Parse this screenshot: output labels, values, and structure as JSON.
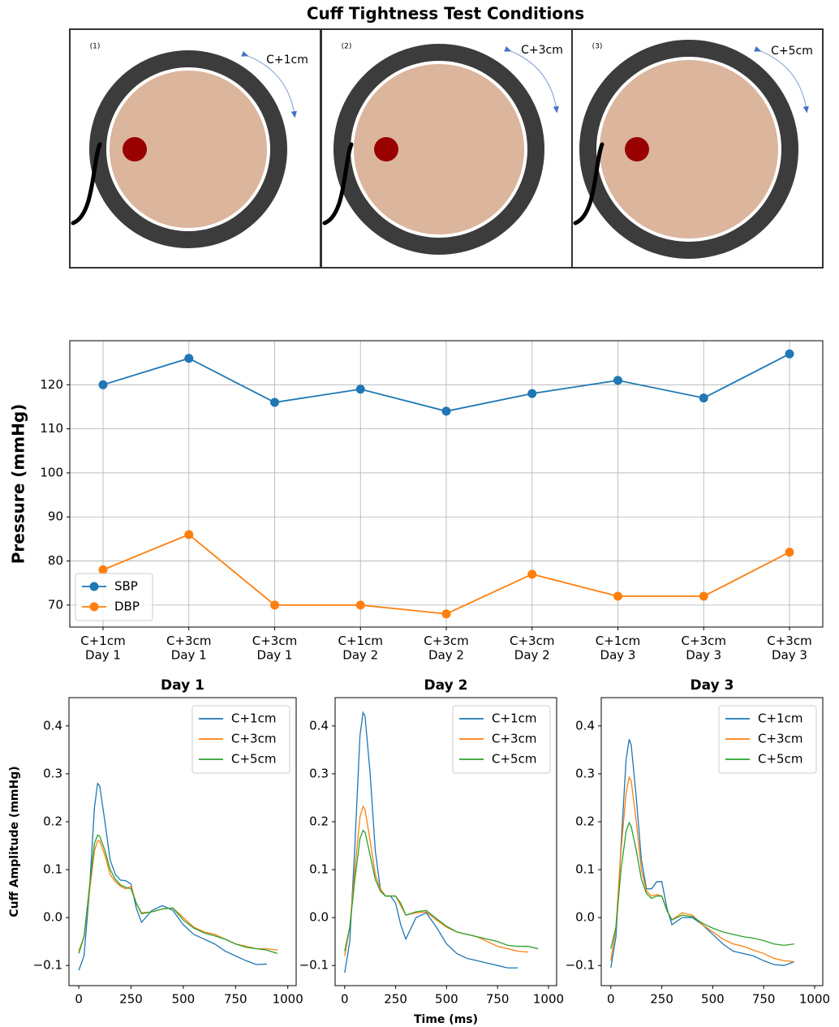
{
  "diagram": {
    "title": "Cuff Tightness Test Conditions",
    "panels": [
      {
        "number": "(1)",
        "label": "C+1cm"
      },
      {
        "number": "(2)",
        "label": "C+3cm"
      },
      {
        "number": "(3)",
        "label": "C+5cm"
      }
    ]
  },
  "chart_data": [
    {
      "type": "line",
      "y_label": "Pressure (mmHg)",
      "categories": [
        "C+1cm\nDay 1",
        "C+3cm\nDay 1",
        "C+3cm\nDay 1",
        "C+1cm\nDay 2",
        "C+3cm\nDay 2",
        "C+3cm\nDay 2",
        "C+1cm\nDay 3",
        "C+3cm\nDay 3",
        "C+3cm\nDay 3"
      ],
      "series": [
        {
          "name": "SBP",
          "color": "#1f77b4",
          "values": [
            120,
            126,
            116,
            119,
            114,
            118,
            121,
            117,
            127
          ]
        },
        {
          "name": "DBP",
          "color": "#ff7f0e",
          "values": [
            78,
            86,
            70,
            70,
            68,
            77,
            72,
            72,
            82
          ]
        }
      ],
      "ylim": [
        65,
        130
      ],
      "yticks": [
        70,
        80,
        90,
        100,
        110,
        120
      ],
      "grid": true,
      "markers": true,
      "legend": "lower left"
    },
    {
      "type": "line",
      "title": "Day 1",
      "y_label": "Cuff Amplitude (mmHg)",
      "x": [
        0,
        25,
        50,
        75,
        90,
        100,
        125,
        150,
        175,
        200,
        225,
        250,
        275,
        300,
        350,
        400,
        450,
        500,
        550,
        600,
        650,
        700,
        750,
        800,
        850,
        900,
        950
      ],
      "series": [
        {
          "name": "C+1cm",
          "color": "#1f77b4",
          "values": [
            -0.11,
            -0.08,
            0.05,
            0.23,
            0.28,
            0.275,
            0.2,
            0.12,
            0.09,
            0.078,
            0.077,
            0.07,
            0.02,
            -0.01,
            0.015,
            0.025,
            0.015,
            -0.015,
            -0.035,
            -0.045,
            -0.055,
            -0.07,
            -0.08,
            -0.09,
            -0.098,
            -0.097,
            null
          ]
        },
        {
          "name": "C+3cm",
          "color": "#ff7f0e",
          "values": [
            -0.07,
            -0.04,
            0.05,
            0.14,
            0.16,
            0.16,
            0.13,
            0.09,
            0.075,
            0.065,
            0.06,
            0.065,
            0.03,
            0.01,
            0.012,
            0.018,
            0.02,
            0.0,
            -0.02,
            -0.03,
            -0.035,
            -0.045,
            -0.055,
            -0.06,
            -0.065,
            -0.065,
            -0.068
          ]
        },
        {
          "name": "C+5cm",
          "color": "#2ca02c",
          "values": [
            -0.075,
            -0.04,
            0.06,
            0.155,
            0.172,
            0.17,
            0.14,
            0.1,
            0.08,
            0.068,
            0.063,
            0.06,
            0.03,
            0.008,
            0.012,
            0.018,
            0.02,
            -0.005,
            -0.022,
            -0.032,
            -0.038,
            -0.045,
            -0.055,
            -0.062,
            -0.065,
            -0.068,
            -0.075
          ]
        }
      ],
      "xlim": [
        -47,
        1040
      ],
      "xticks": [
        0,
        250,
        500,
        750,
        1000
      ],
      "ylim": [
        -0.142,
        0.459
      ],
      "yticks": [
        {
          "value": -0.1,
          "label": "−0.1"
        },
        {
          "value": 0,
          "label": "0.0"
        },
        0.1,
        0.2,
        0.3,
        0.4
      ],
      "legend": "upper right"
    },
    {
      "type": "line",
      "title": "Day 2",
      "x_label": "Time (ms)",
      "x": [
        0,
        25,
        50,
        75,
        90,
        100,
        125,
        150,
        175,
        200,
        225,
        250,
        275,
        300,
        350,
        400,
        450,
        500,
        550,
        600,
        650,
        700,
        750,
        800,
        850,
        900,
        950
      ],
      "series": [
        {
          "name": "C+1cm",
          "color": "#1f77b4",
          "values": [
            -0.115,
            -0.05,
            0.15,
            0.38,
            0.428,
            0.42,
            0.3,
            0.14,
            0.06,
            0.045,
            0.045,
            0.03,
            -0.015,
            -0.045,
            0.0,
            0.01,
            -0.02,
            -0.055,
            -0.075,
            -0.085,
            -0.09,
            -0.095,
            -0.1,
            -0.105,
            -0.105,
            null,
            null
          ]
        },
        {
          "name": "C+3cm",
          "color": "#ff7f0e",
          "values": [
            -0.08,
            -0.02,
            0.1,
            0.21,
            0.232,
            0.225,
            0.16,
            0.09,
            0.06,
            0.045,
            0.045,
            0.045,
            0.025,
            0.005,
            0.01,
            0.012,
            -0.005,
            -0.02,
            -0.03,
            -0.035,
            -0.04,
            -0.05,
            -0.06,
            -0.065,
            -0.07,
            -0.072,
            null
          ]
        },
        {
          "name": "C+5cm",
          "color": "#2ca02c",
          "values": [
            -0.07,
            -0.02,
            0.08,
            0.165,
            0.182,
            0.178,
            0.13,
            0.08,
            0.055,
            0.045,
            0.045,
            0.045,
            0.03,
            0.005,
            0.012,
            0.015,
            -0.002,
            -0.018,
            -0.03,
            -0.035,
            -0.04,
            -0.045,
            -0.05,
            -0.058,
            -0.06,
            -0.06,
            -0.065
          ]
        }
      ],
      "xlim": [
        -47,
        1040
      ],
      "xticks": [
        0,
        250,
        500,
        750,
        1000
      ],
      "ylim": [
        -0.142,
        0.459
      ],
      "yticks": [
        {
          "value": -0.1,
          "label": "−0.1"
        },
        {
          "value": 0,
          "label": "0.0"
        },
        0.1,
        0.2,
        0.3,
        0.4
      ],
      "legend": "upper right"
    },
    {
      "type": "line",
      "title": "Day 3",
      "x": [
        0,
        25,
        50,
        75,
        90,
        100,
        125,
        150,
        175,
        200,
        225,
        250,
        275,
        300,
        350,
        400,
        450,
        500,
        550,
        600,
        650,
        700,
        750,
        800,
        850,
        900,
        950
      ],
      "series": [
        {
          "name": "C+1cm",
          "color": "#1f77b4",
          "values": [
            -0.105,
            -0.04,
            0.15,
            0.33,
            0.372,
            0.36,
            0.25,
            0.12,
            0.06,
            0.06,
            0.075,
            0.075,
            0.02,
            -0.015,
            0.0,
            0.0,
            -0.015,
            -0.035,
            -0.055,
            -0.07,
            -0.075,
            -0.08,
            -0.09,
            -0.098,
            -0.1,
            -0.092,
            null
          ]
        },
        {
          "name": "C+3cm",
          "color": "#ff7f0e",
          "values": [
            -0.09,
            -0.02,
            0.14,
            0.26,
            0.293,
            0.285,
            0.2,
            0.1,
            0.055,
            0.045,
            0.048,
            0.045,
            0.015,
            -0.005,
            0.01,
            0.005,
            -0.015,
            -0.03,
            -0.045,
            -0.055,
            -0.06,
            -0.068,
            -0.075,
            -0.085,
            -0.09,
            -0.092,
            null
          ]
        },
        {
          "name": "C+5cm",
          "color": "#2ca02c",
          "values": [
            -0.065,
            -0.02,
            0.1,
            0.18,
            0.198,
            0.19,
            0.14,
            0.08,
            0.05,
            0.04,
            0.045,
            0.045,
            0.015,
            -0.005,
            0.005,
            0.002,
            -0.012,
            -0.022,
            -0.03,
            -0.035,
            -0.04,
            -0.043,
            -0.048,
            -0.055,
            -0.058,
            -0.055,
            null
          ]
        }
      ],
      "xlim": [
        -47,
        1040
      ],
      "xticks": [
        0,
        250,
        500,
        750,
        1000
      ],
      "ylim": [
        -0.142,
        0.459
      ],
      "yticks": [
        {
          "value": -0.1,
          "label": "−0.1"
        },
        {
          "value": 0,
          "label": "0.0"
        },
        0.1,
        0.2,
        0.3,
        0.4
      ],
      "legend": "upper right"
    }
  ]
}
